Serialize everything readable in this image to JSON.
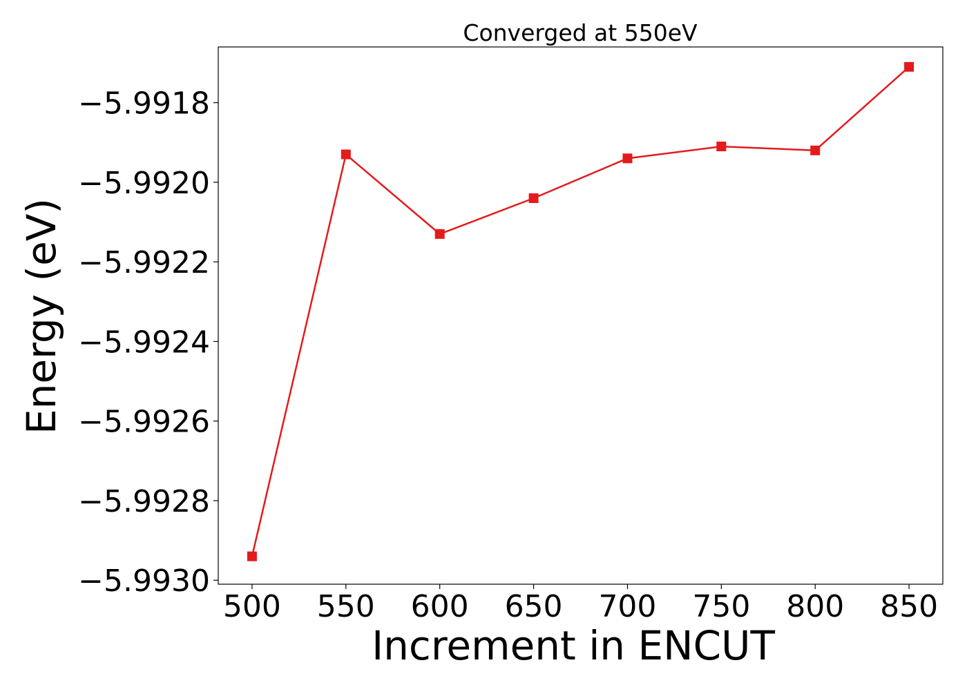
{
  "chart_data": {
    "type": "line",
    "title": "Converged at 550eV",
    "xlabel": "Increment in ENCUT",
    "ylabel": "Energy (eV)",
    "x": [
      500,
      550,
      600,
      650,
      700,
      750,
      800,
      850
    ],
    "series": [
      {
        "values": [
          -5.99294,
          -5.99193,
          -5.99213,
          -5.99204,
          -5.99194,
          -5.99191,
          -5.99192,
          -5.99171
        ],
        "color": "#e41a1c",
        "marker": "square"
      }
    ],
    "xlim": [
      482,
      868
    ],
    "ylim": [
      -5.99301,
      -5.99166
    ],
    "xticks": [
      500,
      550,
      600,
      650,
      700,
      750,
      800,
      850
    ],
    "xtick_labels": [
      "500",
      "550",
      "600",
      "650",
      "700",
      "750",
      "800",
      "850"
    ],
    "yticks": [
      -5.9918,
      -5.992,
      -5.9922,
      -5.9924,
      -5.9926,
      -5.9928,
      -5.993
    ],
    "ytick_labels": [
      "−5.9918",
      "−5.9920",
      "−5.9922",
      "−5.9924",
      "−5.9926",
      "−5.9928",
      "−5.9930"
    ],
    "grid": false,
    "legend": "none"
  }
}
